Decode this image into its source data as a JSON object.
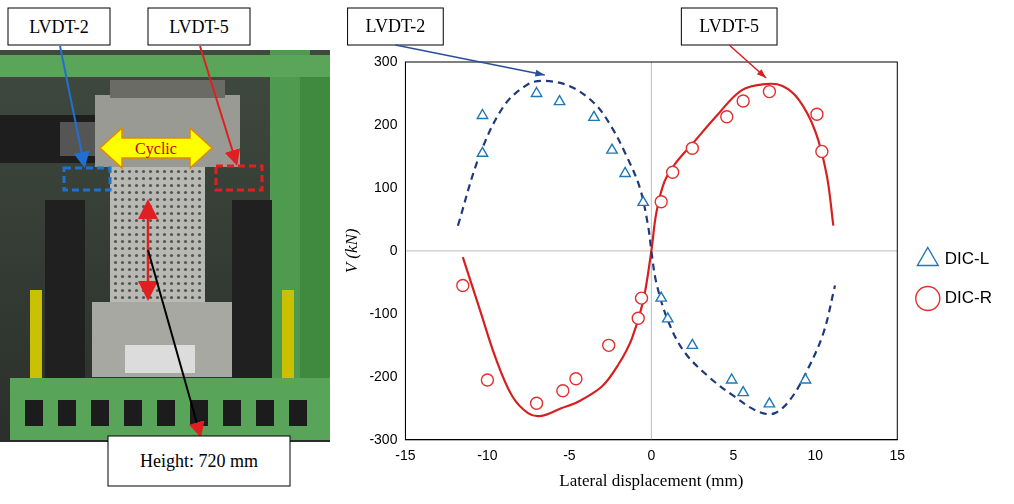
{
  "photo": {
    "sensor_labels": [
      "LVDT-2",
      "LVDT-5"
    ],
    "load_label": "Cyclic",
    "height_label": "Height: 720 mm"
  },
  "chart_data": {
    "type": "line",
    "x_label": "Lateral displacement (mm)",
    "y_label": "V (kN)",
    "xlim": [
      -15,
      15
    ],
    "xticks": [
      -15,
      -10,
      -5,
      0,
      5,
      10,
      15
    ],
    "ylim": [
      -300,
      300
    ],
    "yticks": [
      -300,
      -200,
      -100,
      0,
      100,
      200,
      300
    ],
    "grid": false,
    "legend": "right",
    "series": [
      {
        "name": "LVDT-2",
        "type": "line",
        "color": "#1f3a7a",
        "line_style": "dashed",
        "marker": "none",
        "x": [
          -11.8,
          -10.5,
          -9,
          -7.5,
          -6.5,
          -5,
          -3.5,
          -2.5,
          -1.5,
          -0.7,
          -0.2,
          0,
          0.3,
          1,
          2,
          3.5,
          5,
          6.5,
          7.5,
          8.5,
          9.5,
          10.5,
          11.2
        ],
        "values": [
          40,
          150,
          230,
          265,
          270,
          262,
          235,
          200,
          150,
          100,
          40,
          0,
          -50,
          -110,
          -160,
          -200,
          -230,
          -255,
          -258,
          -235,
          -190,
          -130,
          -55
        ]
      },
      {
        "name": "LVDT-5",
        "type": "line",
        "color": "#d62020",
        "line_style": "solid",
        "marker": "none",
        "x": [
          -11.5,
          -10.5,
          -9.5,
          -8.5,
          -7.5,
          -6.7,
          -5.5,
          -4.5,
          -3,
          -2,
          -1.2,
          -0.5,
          0,
          0.3,
          0.8,
          1.5,
          2.5,
          4,
          5.5,
          7,
          8,
          9,
          10,
          10.7,
          11.1
        ],
        "values": [
          -10,
          -90,
          -170,
          -230,
          -258,
          -262,
          -250,
          -240,
          -215,
          -180,
          -140,
          -80,
          0,
          60,
          110,
          140,
          170,
          215,
          255,
          265,
          262,
          240,
          190,
          120,
          40
        ]
      },
      {
        "name": "DIC-L",
        "type": "scatter",
        "color": "#1f78b4",
        "line_style": "none",
        "marker": "triangle",
        "x": [
          -10.3,
          -10.3,
          -7,
          -5.6,
          -3.5,
          -2.4,
          -1.6,
          -0.5,
          0.6,
          1,
          2.5,
          4.9,
          5.6,
          7.2,
          9.4
        ],
        "values": [
          215,
          155,
          250,
          237,
          212,
          160,
          123,
          77,
          -75,
          -108,
          -150,
          -205,
          -225,
          -243,
          -205
        ]
      },
      {
        "name": "DIC-R",
        "type": "scatter",
        "color": "#e03030",
        "line_style": "none",
        "marker": "circle",
        "x": [
          10.1,
          10.4,
          7.2,
          5.6,
          4.6,
          2.5,
          1.3,
          0.6,
          -0.6,
          -0.8,
          -2.6,
          -4.6,
          -5.4,
          -7,
          -10,
          -11.5
        ],
        "values": [
          217,
          158,
          253,
          238,
          213,
          163,
          125,
          78,
          -75,
          -107,
          -150,
          -203,
          -222,
          -242,
          -205,
          -55
        ]
      }
    ]
  }
}
